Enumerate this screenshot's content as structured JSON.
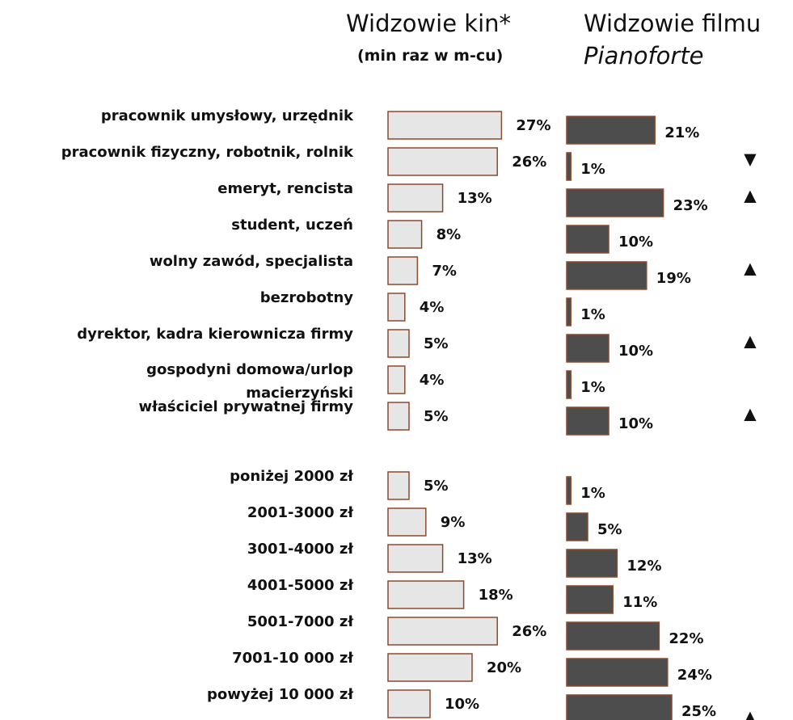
{
  "chart_data": {
    "type": "bar",
    "series": [
      {
        "name": "Widzowie kin*",
        "subtitle": "(min raz w m-cu)",
        "color": "#e6e6e6",
        "edgecolor": "#8b4a2b"
      },
      {
        "name": "Widzowie filmu",
        "subtitle": "Pianoforte",
        "color": "#4d4d4d",
        "edgecolor": "#8b4a2b"
      }
    ],
    "groups": [
      {
        "categories": [
          "pracownik umysłowy, urzędnik",
          "pracownik fizyczny, robotnik, rolnik",
          "emeryt, rencista",
          "student, uczeń",
          "wolny zawód, specjalista",
          "bezrobotny",
          "dyrektor, kadra kierownicza firmy",
          "gospodyni domowa/urlop macierzyński",
          "właściciel prywatnej firmy"
        ],
        "values": [
          [
            27,
            26,
            13,
            8,
            7,
            4,
            5,
            4,
            5
          ],
          [
            21,
            1,
            23,
            10,
            19,
            1,
            10,
            1,
            10
          ]
        ],
        "value_labels": [
          [
            "27%",
            "26%",
            "13%",
            "8%",
            "7%",
            "4%",
            "5%",
            "4%",
            "5%"
          ],
          [
            "21%",
            "1%",
            "23%",
            "10%",
            "19%",
            "1%",
            "10%",
            "1%",
            "10%"
          ]
        ],
        "trend": [
          null,
          "▼",
          "▲",
          null,
          "▲",
          null,
          "▲",
          null,
          "▲"
        ]
      },
      {
        "categories": [
          "poniżej 2000 zł",
          "2001-3000 zł",
          "3001-4000 zł",
          "4001-5000 zł",
          "5001-7000 zł",
          "7001-10 000 zł",
          "powyżej 10 000 zł"
        ],
        "values": [
          [
            5,
            9,
            13,
            18,
            26,
            20,
            10
          ],
          [
            1,
            5,
            12,
            11,
            22,
            24,
            25
          ]
        ],
        "value_labels": [
          [
            "5%",
            "9%",
            "13%",
            "18%",
            "26%",
            "20%",
            "10%"
          ],
          [
            "1%",
            "5%",
            "12%",
            "11%",
            "22%",
            "24%",
            "25%"
          ]
        ],
        "trend": [
          null,
          null,
          null,
          null,
          null,
          null,
          "▲"
        ]
      }
    ]
  }
}
